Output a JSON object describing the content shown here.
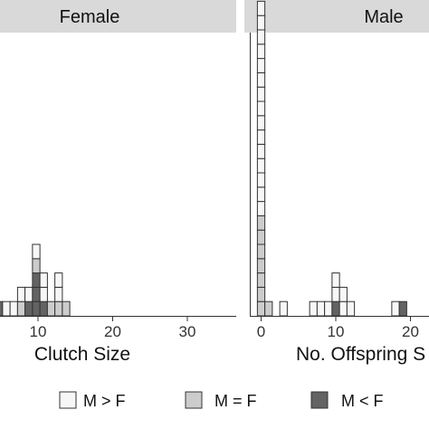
{
  "chart_data": {
    "type": "bar",
    "legend_position": "bottom",
    "legend": [
      {
        "key": "mgtf",
        "label": "M > F",
        "color": "#f7f7f7"
      },
      {
        "key": "meqf",
        "label": "M = F",
        "color": "#cccccc"
      },
      {
        "key": "mltf",
        "label": "M < F",
        "color": "#636363"
      }
    ],
    "panels": [
      {
        "strip": "Female",
        "xlabel": "Clutch Size",
        "xlim": [
          5,
          35
        ],
        "xticks": [
          10,
          20,
          30
        ],
        "tick_labels": [
          "10",
          "20",
          "30"
        ],
        "bins": [
          {
            "x": 5,
            "mltf": 1,
            "meqf": 0,
            "mgtf": 0
          },
          {
            "x": 6,
            "mltf": 0,
            "meqf": 0,
            "mgtf": 1
          },
          {
            "x": 7,
            "mltf": 0,
            "meqf": 0,
            "mgtf": 1
          },
          {
            "x": 8,
            "mltf": 0,
            "meqf": 1,
            "mgtf": 1
          },
          {
            "x": 9,
            "mltf": 1,
            "meqf": 0,
            "mgtf": 1
          },
          {
            "x": 10,
            "mltf": 3,
            "meqf": 1,
            "mgtf": 1
          },
          {
            "x": 11,
            "mltf": 1,
            "meqf": 0,
            "mgtf": 2
          },
          {
            "x": 12,
            "mltf": 0,
            "meqf": 1,
            "mgtf": 0
          },
          {
            "x": 13,
            "mltf": 0,
            "meqf": 1,
            "mgtf": 2
          },
          {
            "x": 14,
            "mltf": 0,
            "meqf": 1,
            "mgtf": 0
          }
        ]
      },
      {
        "strip": "Male",
        "xlabel": "No. Offspring S",
        "xlim": [
          -1,
          22
        ],
        "xticks": [
          0,
          10,
          20
        ],
        "tick_labels": [
          "0",
          "10",
          "20"
        ],
        "bins": [
          {
            "x": 0,
            "mltf": 0,
            "meqf": 7,
            "mgtf": 15
          },
          {
            "x": 1,
            "mltf": 0,
            "meqf": 1,
            "mgtf": 0
          },
          {
            "x": 3,
            "mltf": 0,
            "meqf": 0,
            "mgtf": 1
          },
          {
            "x": 7,
            "mltf": 0,
            "meqf": 0,
            "mgtf": 1
          },
          {
            "x": 8,
            "mltf": 0,
            "meqf": 0,
            "mgtf": 1
          },
          {
            "x": 9,
            "mltf": 0,
            "meqf": 0,
            "mgtf": 1
          },
          {
            "x": 10,
            "mltf": 1,
            "meqf": 0,
            "mgtf": 2
          },
          {
            "x": 11,
            "mltf": 0,
            "meqf": 0,
            "mgtf": 2
          },
          {
            "x": 12,
            "mltf": 0,
            "meqf": 0,
            "mgtf": 1
          },
          {
            "x": 18,
            "mltf": 0,
            "meqf": 0,
            "mgtf": 1
          },
          {
            "x": 19,
            "mltf": 1,
            "meqf": 0,
            "mgtf": 0
          }
        ]
      }
    ]
  }
}
